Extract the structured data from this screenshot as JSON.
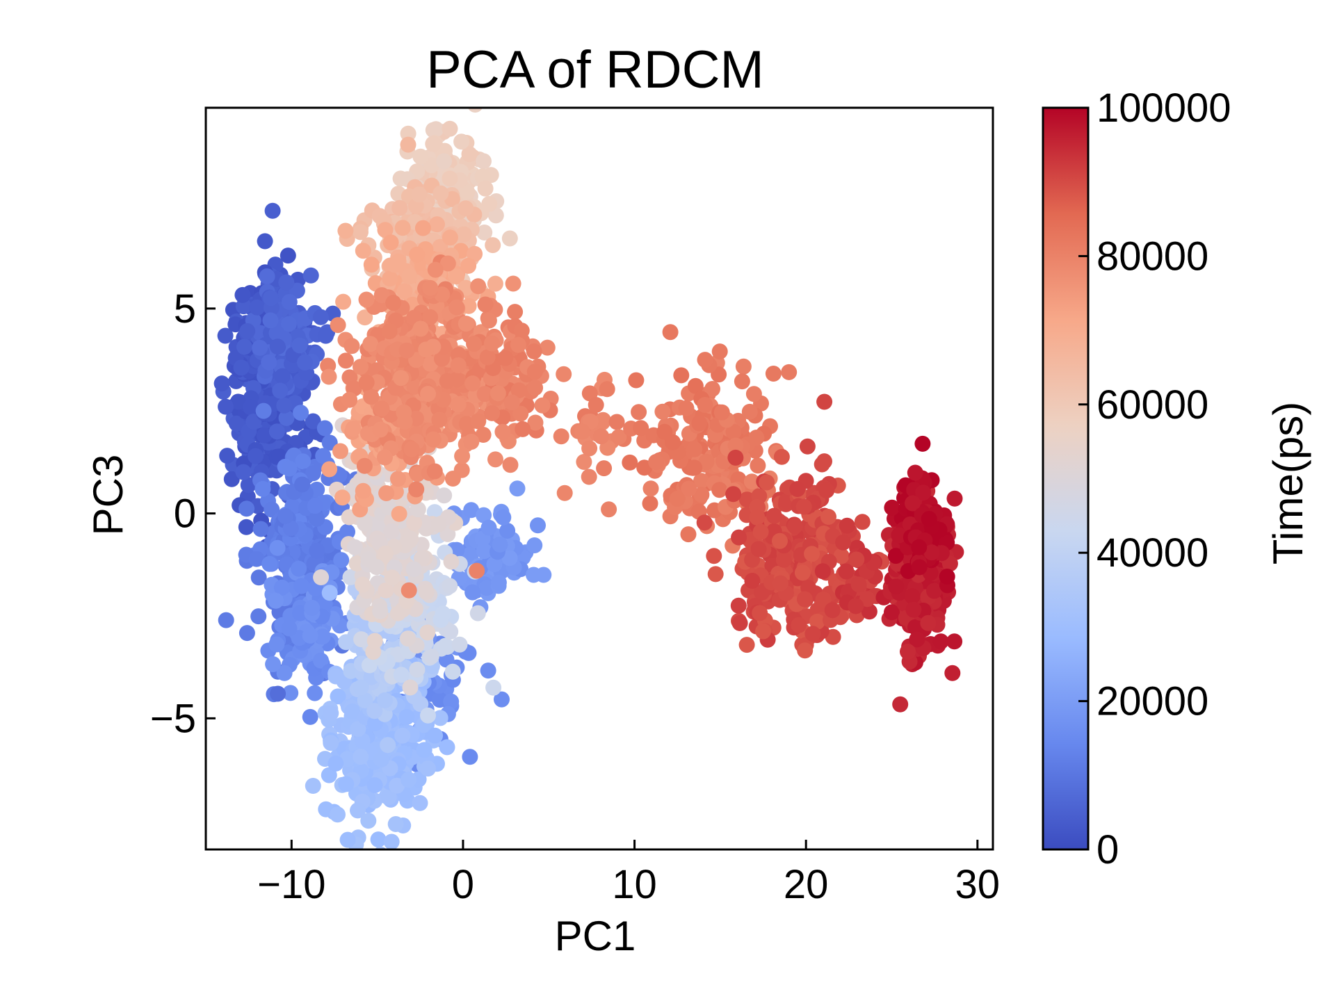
{
  "chart_data": {
    "type": "scatter",
    "title": "PCA of RDCM",
    "xlabel": "PC1",
    "ylabel": "PC3",
    "xlim": [
      -15.0,
      30.9
    ],
    "ylim": [
      -8.2,
      9.9
    ],
    "xticks": [
      -10,
      0,
      10,
      20,
      30
    ],
    "yticks": [
      -5,
      0,
      5
    ],
    "xtick_labels": [
      "−10",
      "0",
      "10",
      "20",
      "30"
    ],
    "ytick_labels": [
      "−5",
      "0",
      "5"
    ],
    "grid": false,
    "colorbar": {
      "label": "Time(ps)",
      "colormap": "coolwarm",
      "range": [
        0,
        100000
      ],
      "ticks": [
        0,
        20000,
        40000,
        60000,
        80000,
        100000
      ],
      "tick_labels": [
        "0",
        "20000",
        "40000",
        "60000",
        "80000",
        "100000"
      ],
      "colors": [
        "#3b4cc0",
        "#6788ee",
        "#9abbff",
        "#c9d7f0",
        "#edd1c2",
        "#f7a889",
        "#e26952",
        "#b40426"
      ]
    },
    "clusters": [
      {
        "time": 3000,
        "cx": -11.5,
        "cy": 3.0,
        "sx": 1.1,
        "sy": 1.4,
        "n": 320
      },
      {
        "time": 6000,
        "cx": -10.5,
        "cy": 4.2,
        "sx": 1.0,
        "sy": 0.7,
        "n": 110
      },
      {
        "time": 12000,
        "cx": -9.5,
        "cy": -0.8,
        "sx": 1.3,
        "sy": 1.2,
        "n": 240
      },
      {
        "time": 16000,
        "cx": -9.0,
        "cy": -2.6,
        "sx": 1.2,
        "sy": 0.7,
        "n": 90
      },
      {
        "time": 18000,
        "cx": 1.5,
        "cy": -0.9,
        "sx": 1.2,
        "sy": 0.6,
        "n": 80
      },
      {
        "time": 16000,
        "cx": -2.5,
        "cy": -4.0,
        "sx": 1.6,
        "sy": 0.8,
        "n": 80
      },
      {
        "time": 30000,
        "cx": -5.0,
        "cy": -5.5,
        "sx": 1.4,
        "sy": 1.0,
        "n": 260
      },
      {
        "time": 36000,
        "cx": -4.5,
        "cy": -3.5,
        "sx": 1.2,
        "sy": 0.7,
        "n": 90
      },
      {
        "time": 44000,
        "cx": -3.0,
        "cy": -2.2,
        "sx": 1.5,
        "sy": 0.9,
        "n": 110
      },
      {
        "time": 52000,
        "cx": -4.0,
        "cy": -0.5,
        "sx": 1.5,
        "sy": 1.2,
        "n": 200
      },
      {
        "time": 58000,
        "cx": -1.0,
        "cy": 7.8,
        "sx": 1.3,
        "sy": 0.8,
        "n": 160
      },
      {
        "time": 64000,
        "cx": -2.5,
        "cy": 6.6,
        "sx": 1.5,
        "sy": 0.6,
        "n": 150
      },
      {
        "time": 70000,
        "cx": -2.5,
        "cy": 5.4,
        "sx": 1.6,
        "sy": 0.6,
        "n": 150
      },
      {
        "time": 73000,
        "cx": -4.5,
        "cy": 1.8,
        "sx": 1.3,
        "sy": 0.8,
        "n": 80
      },
      {
        "time": 78000,
        "cx": -2.0,
        "cy": 3.4,
        "sx": 2.0,
        "sy": 1.1,
        "n": 380
      },
      {
        "time": 80000,
        "cx": 2.5,
        "cy": 3.5,
        "sx": 1.4,
        "sy": 0.7,
        "n": 80
      },
      {
        "time": 80000,
        "cx": 7.0,
        "cy": 2.0,
        "sx": 2.0,
        "sy": 0.5,
        "n": 40
      },
      {
        "time": 82000,
        "cx": 14.5,
        "cy": 1.6,
        "sx": 1.8,
        "sy": 0.9,
        "n": 190
      },
      {
        "time": 90000,
        "cx": 19.5,
        "cy": -1.1,
        "sx": 1.8,
        "sy": 1.0,
        "n": 260
      },
      {
        "time": 92000,
        "cx": 23.0,
        "cy": -1.8,
        "sx": 0.8,
        "sy": 0.6,
        "n": 40
      },
      {
        "time": 96000,
        "cx": 26.5,
        "cy": -1.6,
        "sx": 0.9,
        "sy": 0.9,
        "n": 170
      },
      {
        "time": 99000,
        "cx": 26.8,
        "cy": -0.3,
        "sx": 0.8,
        "sy": 0.6,
        "n": 130
      }
    ],
    "outliers": [
      {
        "x": -10.8,
        "y": -4.4,
        "time": 8000
      },
      {
        "x": 26.8,
        "y": 1.7,
        "time": 100000
      },
      {
        "x": 8.5,
        "y": 0.1,
        "time": 80000
      },
      {
        "x": 4.7,
        "y": -1.5,
        "time": 20000
      },
      {
        "x": -3.2,
        "y": 9.0,
        "time": 66000
      },
      {
        "x": -0.2,
        "y": -3.2,
        "time": 45000
      },
      {
        "x": 1.3,
        "y": 5.1,
        "time": 80000
      },
      {
        "x": 0.8,
        "y": -1.4,
        "time": 80000
      }
    ]
  }
}
